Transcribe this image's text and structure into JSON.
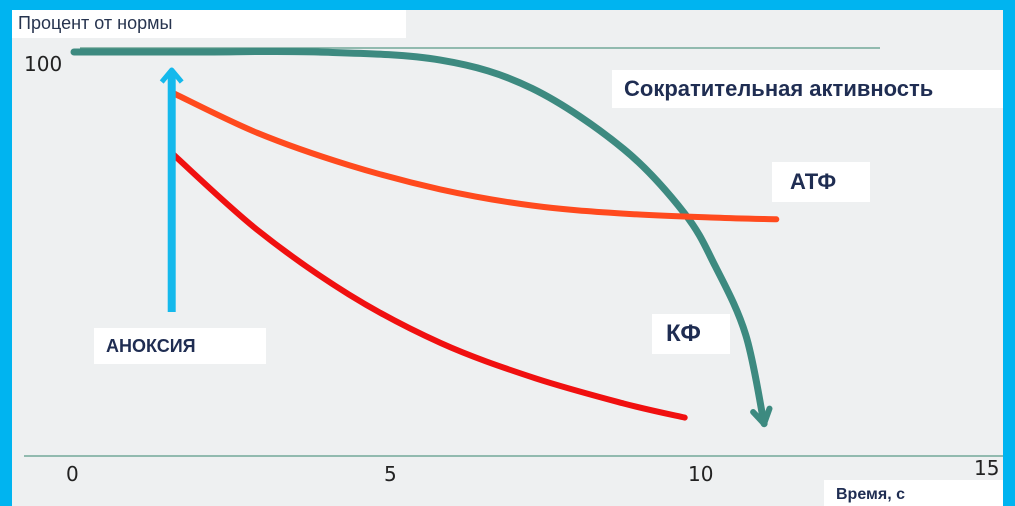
{
  "chart_data": {
    "type": "line",
    "ylabel": "Процент от нормы",
    "xlabel": "Время, с",
    "x_ticks": [
      "0",
      "5",
      "10",
      "15"
    ],
    "y_ticks": [
      "100"
    ],
    "xlim": [
      0,
      15
    ],
    "ylim": [
      0,
      100
    ],
    "event": {
      "label": "АНОКСИЯ",
      "x": 1.6,
      "color": "#14b9ec"
    },
    "series": [
      {
        "name": "Сократительная активность",
        "color": "#3d8a80",
        "x": [
          0,
          2,
          4,
          6,
          7.5,
          9,
          10,
          10.5,
          11,
          11.3
        ],
        "y": [
          100,
          100,
          100,
          98,
          91,
          76,
          60,
          47,
          30,
          8
        ]
      },
      {
        "name": "АТФ",
        "color": "#ff4a1e",
        "x": [
          1.6,
          3,
          4.5,
          6,
          7.5,
          9,
          10.5,
          11.5
        ],
        "y": [
          90,
          80,
          72,
          66,
          62,
          60,
          59,
          58.6
        ]
      },
      {
        "name": "КФ",
        "color": "#f01010",
        "x": [
          1.6,
          3,
          4.5,
          6,
          7.5,
          9,
          10
        ],
        "y": [
          75,
          56,
          40,
          28,
          19.5,
          13,
          9.5
        ]
      }
    ]
  }
}
